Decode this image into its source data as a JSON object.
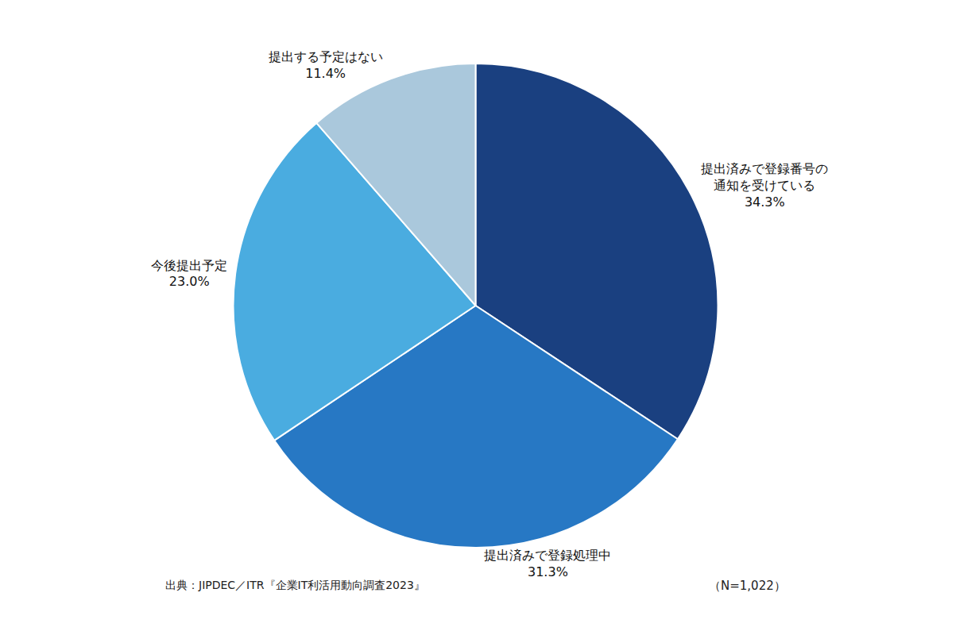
{
  "chart_data": {
    "type": "pie",
    "categories": [
      "提出済みで登録番号の\n通知を受けている",
      "提出済みで登録処理中",
      "今後提出予定",
      "提出する予定はない"
    ],
    "values": [
      34.3,
      31.3,
      23.0,
      11.4
    ],
    "value_labels": [
      "34.3%",
      "31.3%",
      "23.0%",
      "11.4%"
    ],
    "colors": [
      "#1a4080",
      "#2778c4",
      "#4aace0",
      "#aac8dc"
    ],
    "data_labels": true,
    "annotations": [
      "出典：JIPDEC／ITR『企業IT利活用動向調査2023』",
      "（N=1,022）"
    ]
  }
}
